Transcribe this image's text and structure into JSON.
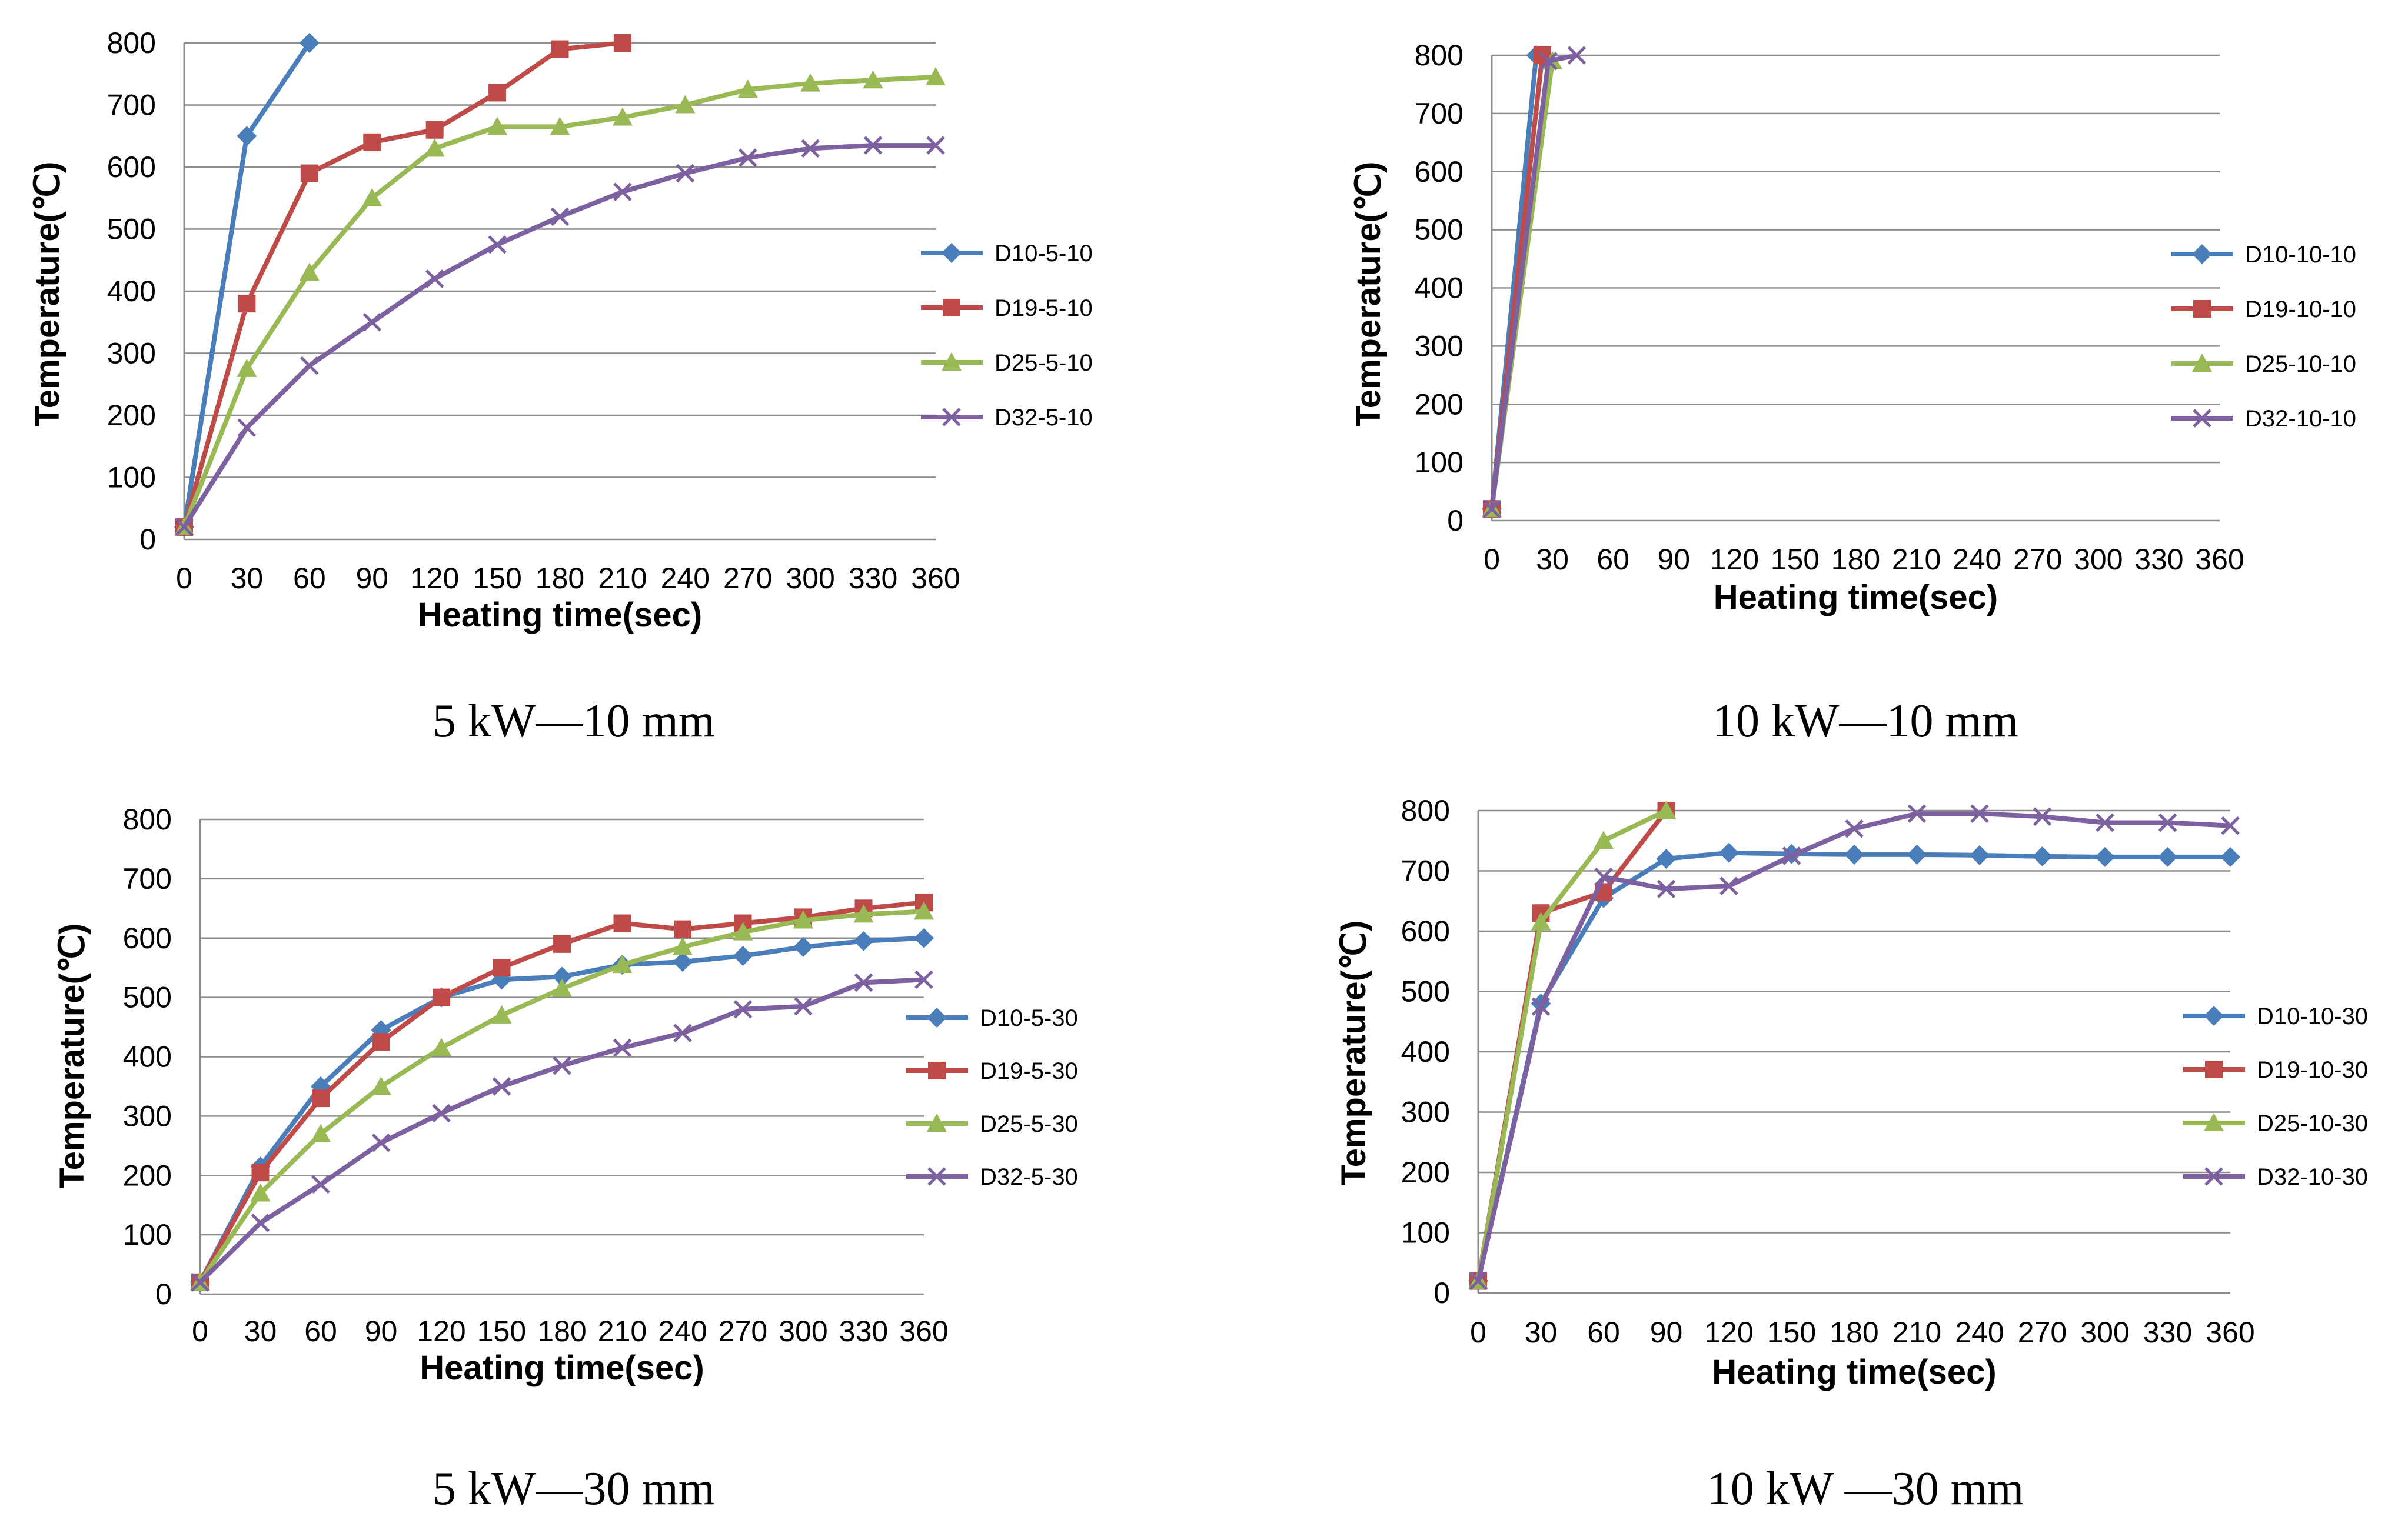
{
  "colors": {
    "D10": "#4a7ebb",
    "D19": "#be4b48",
    "D25": "#98b954",
    "D32": "#7d60a0"
  },
  "marker_icons": [
    "diamond-marker-icon",
    "square-marker-icon",
    "triangle-marker-icon",
    "x-marker-icon"
  ],
  "chart_data": [
    {
      "type": "line",
      "caption": "5 kW—10 mm",
      "xlabel": "Heating time(sec)",
      "ylabel": "Temperature(℃)",
      "x_ticks": [
        0,
        30,
        60,
        90,
        120,
        150,
        180,
        210,
        240,
        270,
        300,
        330,
        360
      ],
      "y_ticks": [
        0,
        100,
        200,
        300,
        400,
        500,
        600,
        700,
        800
      ],
      "xlim": [
        0,
        360
      ],
      "ylim": [
        0,
        800
      ],
      "grid": true,
      "legend_position": "right",
      "series": [
        {
          "name": "D10-5-10",
          "x": [
            0,
            30,
            60
          ],
          "y": [
            20,
            650,
            800
          ]
        },
        {
          "name": "D19-5-10",
          "x": [
            0,
            30,
            60,
            90,
            120,
            150,
            180,
            210
          ],
          "y": [
            20,
            380,
            590,
            640,
            660,
            720,
            790,
            800
          ]
        },
        {
          "name": "D25-5-10",
          "x": [
            0,
            30,
            60,
            90,
            120,
            150,
            180,
            210,
            240,
            270,
            300,
            330,
            360
          ],
          "y": [
            20,
            275,
            430,
            550,
            630,
            665,
            665,
            680,
            700,
            725,
            735,
            740,
            745
          ]
        },
        {
          "name": "D32-5-10",
          "x": [
            0,
            30,
            60,
            90,
            120,
            150,
            180,
            210,
            240,
            270,
            300,
            330,
            360
          ],
          "y": [
            20,
            180,
            280,
            350,
            420,
            475,
            520,
            560,
            590,
            615,
            630,
            635,
            635
          ]
        }
      ]
    },
    {
      "type": "line",
      "caption": "10 kW—10 mm",
      "xlabel": "Heating time(sec)",
      "ylabel": "Temperature(℃)",
      "x_ticks": [
        0,
        30,
        60,
        90,
        120,
        150,
        180,
        210,
        240,
        270,
        300,
        330,
        360
      ],
      "y_ticks": [
        0,
        100,
        200,
        300,
        400,
        500,
        600,
        700,
        800
      ],
      "xlim": [
        0,
        360
      ],
      "ylim": [
        0,
        800
      ],
      "grid": true,
      "legend_position": "right",
      "series": [
        {
          "name": "D10-10-10",
          "x": [
            0,
            22
          ],
          "y": [
            20,
            800
          ]
        },
        {
          "name": "D19-10-10",
          "x": [
            0,
            25
          ],
          "y": [
            20,
            800
          ]
        },
        {
          "name": "D25-10-10",
          "x": [
            0,
            30
          ],
          "y": [
            20,
            790
          ]
        },
        {
          "name": "D32-10-10",
          "x": [
            0,
            28,
            42
          ],
          "y": [
            20,
            790,
            800
          ]
        }
      ]
    },
    {
      "type": "line",
      "caption": "5 kW—30 mm",
      "xlabel": "Heating time(sec)",
      "ylabel": "Temperature(℃)",
      "x_ticks": [
        0,
        30,
        60,
        90,
        120,
        150,
        180,
        210,
        240,
        270,
        300,
        330,
        360
      ],
      "y_ticks": [
        0,
        100,
        200,
        300,
        400,
        500,
        600,
        700,
        800
      ],
      "xlim": [
        0,
        360
      ],
      "ylim": [
        0,
        800
      ],
      "grid": true,
      "legend_position": "right",
      "series": [
        {
          "name": "D10-5-30",
          "x": [
            0,
            30,
            60,
            90,
            120,
            150,
            180,
            210,
            240,
            270,
            300,
            330,
            360
          ],
          "y": [
            20,
            215,
            350,
            445,
            500,
            530,
            535,
            555,
            560,
            570,
            585,
            595,
            600
          ]
        },
        {
          "name": "D19-5-30",
          "x": [
            0,
            30,
            60,
            90,
            120,
            150,
            180,
            210,
            240,
            270,
            300,
            330,
            360
          ],
          "y": [
            20,
            205,
            330,
            425,
            500,
            550,
            590,
            625,
            615,
            625,
            635,
            650,
            660
          ]
        },
        {
          "name": "D25-5-30",
          "x": [
            0,
            30,
            60,
            90,
            120,
            150,
            180,
            210,
            240,
            270,
            300,
            330,
            360
          ],
          "y": [
            20,
            170,
            270,
            350,
            415,
            470,
            515,
            555,
            585,
            610,
            630,
            640,
            645
          ]
        },
        {
          "name": "D32-5-30",
          "x": [
            0,
            30,
            60,
            90,
            120,
            150,
            180,
            210,
            240,
            270,
            300,
            330,
            360
          ],
          "y": [
            20,
            120,
            185,
            255,
            305,
            350,
            385,
            415,
            440,
            480,
            485,
            525,
            530
          ]
        }
      ]
    },
    {
      "type": "line",
      "caption": "10 kW —30 mm",
      "xlabel": "Heating time(sec)",
      "ylabel": "Temperature(℃)",
      "x_ticks": [
        0,
        30,
        60,
        90,
        120,
        150,
        180,
        210,
        240,
        270,
        300,
        330,
        360
      ],
      "y_ticks": [
        0,
        100,
        200,
        300,
        400,
        500,
        600,
        700,
        800
      ],
      "xlim": [
        0,
        360
      ],
      "ylim": [
        0,
        800
      ],
      "grid": true,
      "legend_position": "right",
      "series": [
        {
          "name": "D10-10-30",
          "x": [
            0,
            30,
            60,
            90,
            120,
            150,
            180,
            210,
            240,
            270,
            300,
            330,
            360
          ],
          "y": [
            20,
            480,
            655,
            720,
            730,
            728,
            727,
            727,
            726,
            724,
            723,
            723,
            723
          ]
        },
        {
          "name": "D19-10-30",
          "x": [
            0,
            30,
            60,
            90
          ],
          "y": [
            20,
            630,
            665,
            800
          ]
        },
        {
          "name": "D25-10-30",
          "x": [
            0,
            30,
            60,
            90
          ],
          "y": [
            20,
            615,
            750,
            800
          ]
        },
        {
          "name": "D32-10-30",
          "x": [
            0,
            30,
            60,
            90,
            120,
            150,
            180,
            210,
            240,
            270,
            300,
            330,
            360
          ],
          "y": [
            20,
            475,
            690,
            670,
            675,
            725,
            770,
            795,
            795,
            790,
            780,
            780,
            775
          ]
        }
      ]
    }
  ]
}
